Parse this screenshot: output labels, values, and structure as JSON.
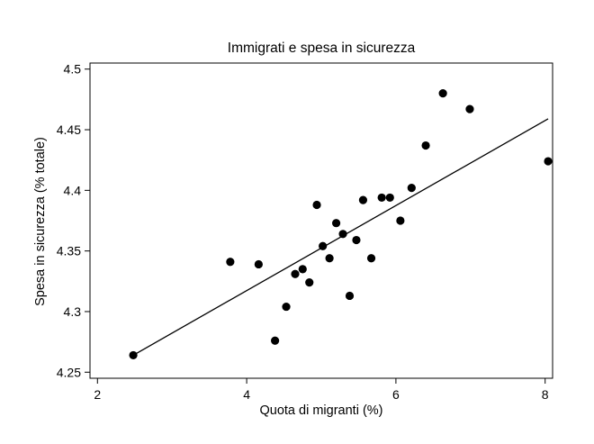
{
  "chart_data": {
    "type": "scatter",
    "title": "Immigrati e spesa in sicurezza",
    "xlabel": "Quota di migranti (%)",
    "ylabel": "Spesa in sicurezza (% totale)",
    "xlim": [
      1.9,
      8.1
    ],
    "ylim": [
      4.245,
      4.505
    ],
    "xticks": [
      2,
      4,
      6,
      8
    ],
    "yticks": [
      4.25,
      4.3,
      4.35,
      4.4,
      4.45,
      4.5
    ],
    "xtick_labels": [
      "2",
      "4",
      "6",
      "8"
    ],
    "ytick_labels": [
      "4.25",
      "4.3",
      "4.35",
      "4.4",
      "4.45",
      "4.5"
    ],
    "grid": false,
    "legend": "none",
    "points": [
      {
        "x": 2.48,
        "y": 4.264
      },
      {
        "x": 3.78,
        "y": 4.341
      },
      {
        "x": 4.16,
        "y": 4.339
      },
      {
        "x": 4.38,
        "y": 4.276
      },
      {
        "x": 4.53,
        "y": 4.304
      },
      {
        "x": 4.65,
        "y": 4.331
      },
      {
        "x": 4.75,
        "y": 4.335
      },
      {
        "x": 4.84,
        "y": 4.324
      },
      {
        "x": 4.94,
        "y": 4.388
      },
      {
        "x": 5.02,
        "y": 4.354
      },
      {
        "x": 5.11,
        "y": 4.344
      },
      {
        "x": 5.2,
        "y": 4.373
      },
      {
        "x": 5.29,
        "y": 4.364
      },
      {
        "x": 5.38,
        "y": 4.313
      },
      {
        "x": 5.47,
        "y": 4.359
      },
      {
        "x": 5.56,
        "y": 4.392
      },
      {
        "x": 5.67,
        "y": 4.344
      },
      {
        "x": 5.81,
        "y": 4.394
      },
      {
        "x": 5.92,
        "y": 4.394
      },
      {
        "x": 6.06,
        "y": 4.375
      },
      {
        "x": 6.21,
        "y": 4.402
      },
      {
        "x": 6.4,
        "y": 4.437
      },
      {
        "x": 6.63,
        "y": 4.48
      },
      {
        "x": 6.99,
        "y": 4.467
      },
      {
        "x": 8.04,
        "y": 4.424
      }
    ],
    "fit_line": [
      {
        "x": 2.48,
        "y": 4.264
      },
      {
        "x": 8.04,
        "y": 4.459
      }
    ],
    "colors": {
      "points": "#000000",
      "fit_line": "#000000",
      "axes": "#000000",
      "background": "#ffffff"
    }
  }
}
